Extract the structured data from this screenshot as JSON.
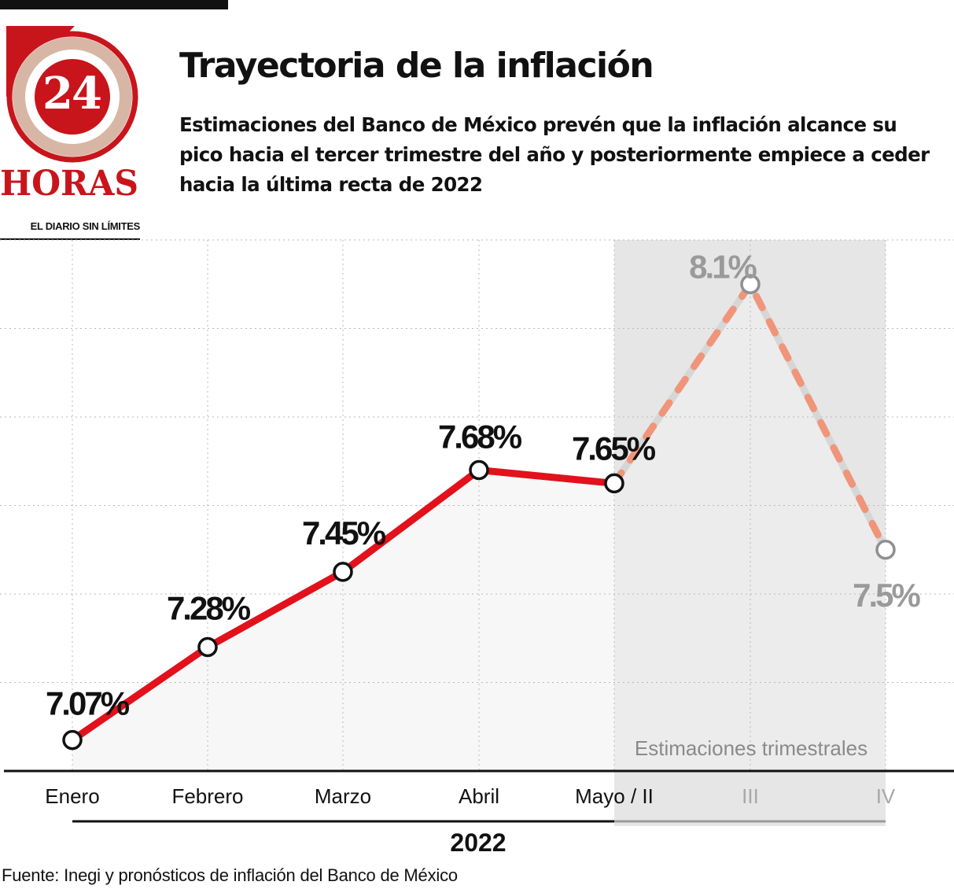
{
  "header": {
    "title": "Trayectoria de la inflación",
    "subtitle": "Estimaciones del Banco de México prevén que la inflación alcance su pico hacia el tercer trimestre del año y posteriormente empiece a ceder hacia la última recta de 2022"
  },
  "logo": {
    "number": "24",
    "word": "HORAS",
    "tagline": "EL DIARIO SIN LÍMITES",
    "colors": {
      "red": "#c8151b",
      "dark": "#111111"
    }
  },
  "chart_data": {
    "type": "line",
    "categories": [
      "Enero",
      "Febrero",
      "Marzo",
      "Abril",
      "Mayo / II",
      "III",
      "IV"
    ],
    "series": [
      {
        "values": [
          7.07,
          7.28,
          7.45,
          7.68,
          7.65,
          null,
          null
        ],
        "labels": [
          "7.07%",
          "7.28%",
          "7.45%",
          "7.68%",
          "7.65%",
          "",
          ""
        ],
        "color": "#e2111b",
        "style": "solid"
      },
      {
        "values": [
          null,
          null,
          null,
          null,
          7.65,
          8.1,
          7.5
        ],
        "labels": [
          "",
          "",
          "",
          "",
          "",
          "8.1%",
          "7.5%"
        ],
        "color": "#f0957a",
        "style": "dashed"
      }
    ],
    "xlabel": "2022",
    "ylabel": "",
    "ylim": [
      7.0,
      8.2
    ],
    "grid": true,
    "shaded_region": {
      "from": "Mayo / II",
      "to": "IV",
      "label": "Estimaciones trimestrales",
      "color": "#e6e6e6"
    },
    "area_fill": "#f1f1f1",
    "label_colors": {
      "actual": "#111111",
      "forecast": "#9a9a9a"
    }
  },
  "footer": {
    "source": "Fuente: Inegi y pronósticos de inflación del Banco de México"
  }
}
